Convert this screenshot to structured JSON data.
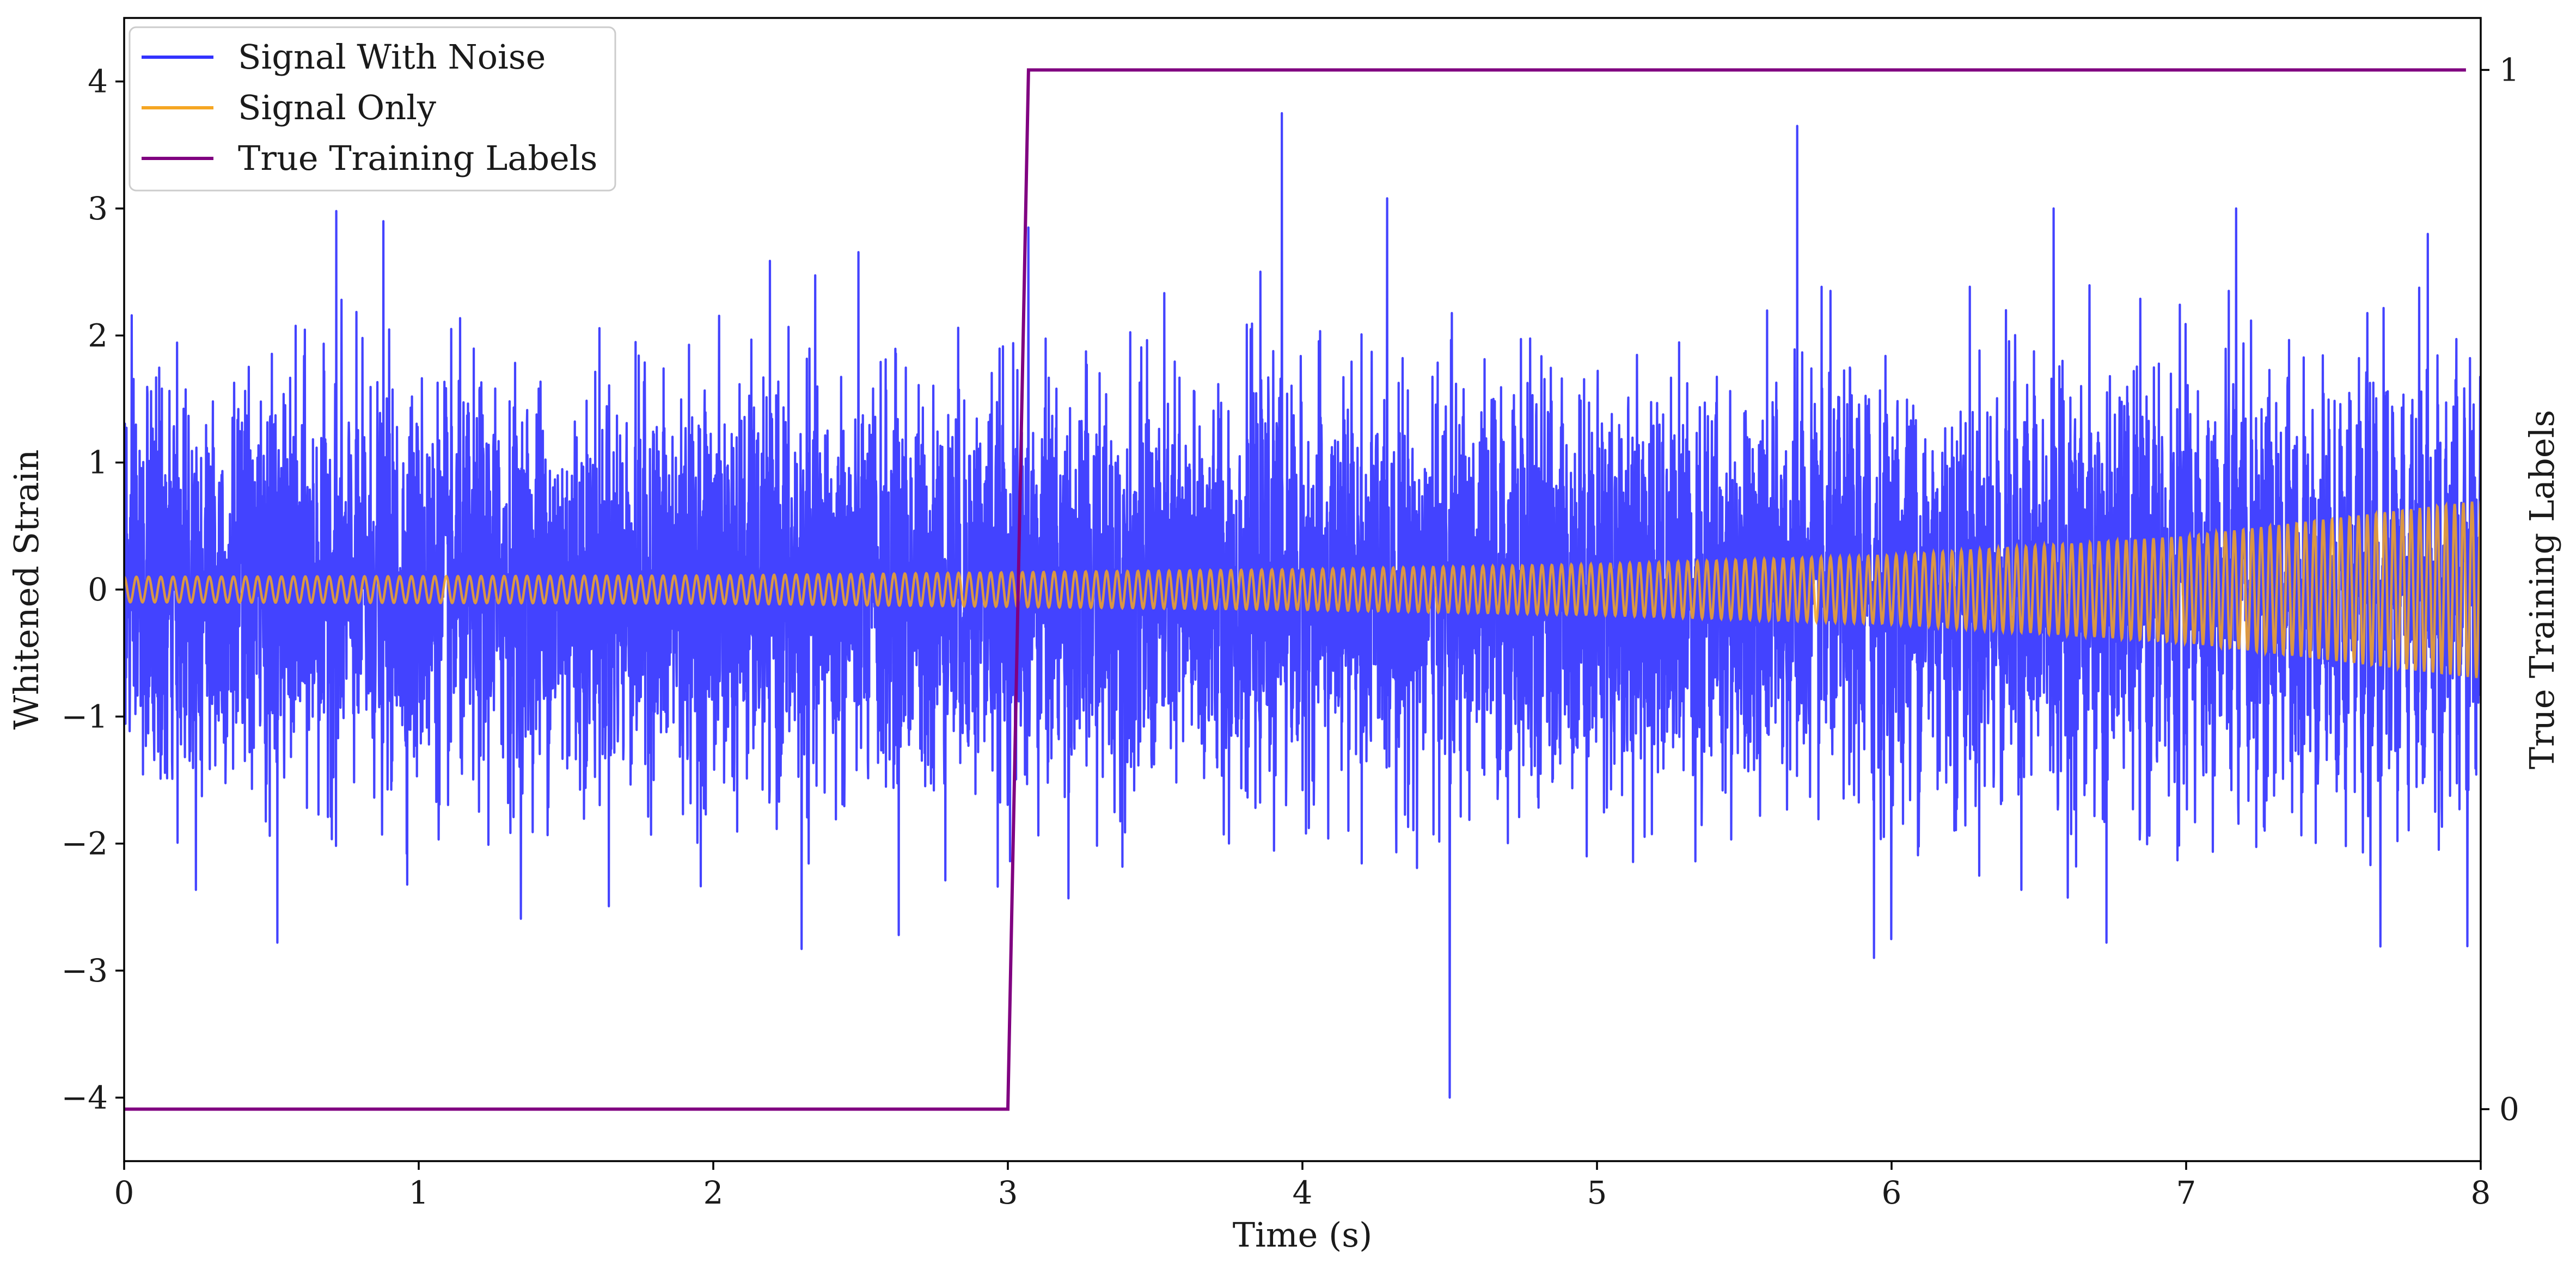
{
  "chart_data": {
    "type": "line",
    "xlabel": "Time (s)",
    "ylabel": "Whitened Strain",
    "y2label": "True Training Labels",
    "xlim": [
      0,
      8
    ],
    "ylim": [
      -4.5,
      4.5
    ],
    "y2lim": [
      -0.05,
      1.05
    ],
    "xticks": [
      "0",
      "1",
      "2",
      "3",
      "4",
      "5",
      "6",
      "7",
      "8"
    ],
    "yticks": [
      "−4",
      "−3",
      "−2",
      "−1",
      "0",
      "1",
      "2",
      "3",
      "4"
    ],
    "y2ticks": [
      "0",
      "1"
    ],
    "legend_position": "upper-left",
    "grid": false,
    "series": [
      {
        "name": "Signal With Noise",
        "color": "#3333ff",
        "description": "white-like noise, std approx 0.75, range approx -4.0 to 3.8",
        "approx_std": 0.75,
        "notable_peaks": [
          {
            "x": 3.93,
            "y": 3.75
          },
          {
            "x": 5.68,
            "y": 3.65
          },
          {
            "x": 0.72,
            "y": 2.98
          },
          {
            "x": 0.88,
            "y": 2.9
          },
          {
            "x": 6.55,
            "y": 3.0
          },
          {
            "x": 7.17,
            "y": 3.0
          },
          {
            "x": 7.82,
            "y": 2.8
          },
          {
            "x": 3.07,
            "y": 2.85
          },
          {
            "x": 4.5,
            "y": -4.0
          },
          {
            "x": 5.94,
            "y": -2.9
          },
          {
            "x": 2.3,
            "y": -2.83
          },
          {
            "x": 0.52,
            "y": -2.78
          },
          {
            "x": 6.73,
            "y": -2.78
          },
          {
            "x": 2.63,
            "y": -2.72
          }
        ]
      },
      {
        "name": "Signal Only",
        "color": "#f5a623",
        "description": "chirp whose amplitude grows from about 0.1 at t=0 to about 0.7 at t=8",
        "amplitude_envelope": [
          {
            "x": 0,
            "y": 0.1
          },
          {
            "x": 2,
            "y": 0.11
          },
          {
            "x": 4,
            "y": 0.16
          },
          {
            "x": 5,
            "y": 0.2
          },
          {
            "x": 6,
            "y": 0.27
          },
          {
            "x": 7,
            "y": 0.42
          },
          {
            "x": 8,
            "y": 0.7
          }
        ]
      },
      {
        "name": "True Training Labels",
        "color": "#800080",
        "axis": "right",
        "points": [
          {
            "x": 0,
            "y": 0
          },
          {
            "x": 3.0,
            "y": 0
          },
          {
            "x": 3.07,
            "y": 1
          },
          {
            "x": 7.95,
            "y": 1
          }
        ]
      }
    ]
  }
}
